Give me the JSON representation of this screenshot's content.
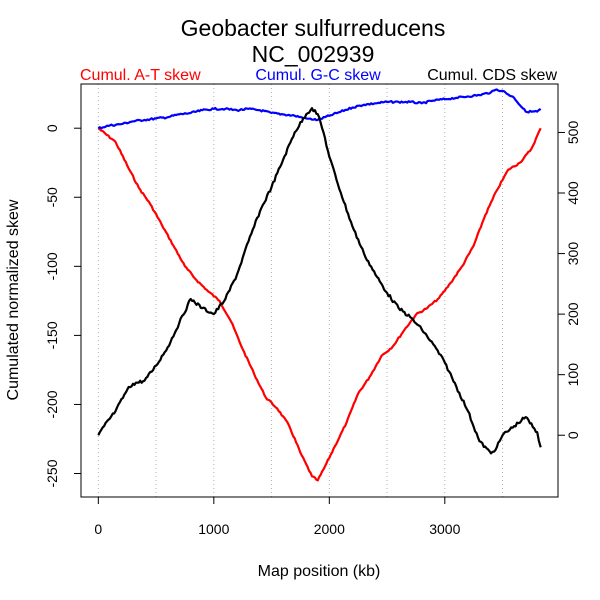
{
  "chart_data": {
    "type": "line",
    "title": "Geobacter sulfurreducens",
    "subtitle": "NC_002939",
    "xlabel": "Map position (kb)",
    "ylabel": "Cumulated normalized skew",
    "xlim": [
      -150,
      3980
    ],
    "ylim": [
      -267,
      32
    ],
    "y2lim": [
      -102,
      580
    ],
    "x_ticks": [
      0,
      1000,
      2000,
      3000
    ],
    "y_ticks": [
      0,
      -50,
      -100,
      -150,
      -200,
      -250
    ],
    "y2_ticks": [
      0,
      100,
      200,
      300,
      400,
      500
    ],
    "vgrid": [
      0,
      500,
      1000,
      1500,
      2000,
      2500,
      3000,
      3500
    ],
    "legend": [
      "Cumul. A-T skew",
      "Cumul. G-C skew",
      "Cumul. CDS skew"
    ],
    "series": [
      {
        "name": "Cumul. A-T skew",
        "axis": "left",
        "color": "#ff0000",
        "x": [
          0,
          150,
          250,
          350,
          450,
          550,
          650,
          750,
          850,
          950,
          1050,
          1150,
          1250,
          1350,
          1450,
          1550,
          1650,
          1750,
          1850,
          1900,
          1950,
          2050,
          2150,
          2250,
          2350,
          2450,
          2550,
          2650,
          2750,
          2850,
          2950,
          3050,
          3150,
          3250,
          3350,
          3450,
          3550,
          3650,
          3750,
          3830
        ],
        "values": [
          0,
          -10,
          -27,
          -43,
          -55,
          -70,
          -85,
          -100,
          -110,
          -118,
          -125,
          -140,
          -160,
          -178,
          -195,
          -203,
          -215,
          -235,
          -252,
          -255,
          -247,
          -230,
          -213,
          -192,
          -180,
          -165,
          -158,
          -146,
          -135,
          -130,
          -123,
          -112,
          -100,
          -85,
          -63,
          -45,
          -30,
          -25,
          -15,
          0
        ]
      },
      {
        "name": "Cumul. G-C skew",
        "axis": "left",
        "color": "#0000ff",
        "x": [
          0,
          100,
          200,
          300,
          400,
          500,
          600,
          700,
          800,
          900,
          1000,
          1100,
          1200,
          1300,
          1400,
          1500,
          1600,
          1700,
          1800,
          1900,
          2000,
          2100,
          2200,
          2300,
          2400,
          2500,
          2600,
          2700,
          2800,
          2900,
          3000,
          3100,
          3200,
          3300,
          3400,
          3450,
          3500,
          3600,
          3700,
          3800,
          3830
        ],
        "values": [
          0,
          2,
          3,
          5,
          6,
          7,
          8,
          10,
          11,
          13,
          14,
          14,
          13,
          14,
          13,
          11,
          10,
          9,
          7,
          6,
          9,
          12,
          15,
          17,
          18,
          19,
          19,
          19,
          18,
          20,
          21,
          22,
          23,
          24,
          26,
          28,
          27,
          22,
          12,
          12,
          14
        ]
      },
      {
        "name": "Cumul. CDS skew",
        "axis": "right",
        "color": "#000000",
        "x": [
          0,
          50,
          150,
          250,
          300,
          400,
          500,
          600,
          700,
          800,
          900,
          1000,
          1100,
          1200,
          1300,
          1400,
          1500,
          1600,
          1700,
          1800,
          1850,
          1900,
          1950,
          2000,
          2100,
          2200,
          2300,
          2400,
          2500,
          2600,
          2700,
          2800,
          2900,
          3000,
          3100,
          3200,
          3300,
          3400,
          3450,
          3500,
          3600,
          3700,
          3800,
          3830
        ],
        "values": [
          0,
          15,
          40,
          75,
          85,
          90,
          115,
          145,
          185,
          225,
          210,
          200,
          225,
          265,
          320,
          370,
          410,
          455,
          500,
          530,
          540,
          530,
          500,
          460,
          400,
          345,
          300,
          265,
          235,
          210,
          195,
          175,
          150,
          120,
          80,
          40,
          -10,
          -30,
          -20,
          0,
          15,
          30,
          5,
          -20
        ]
      }
    ]
  }
}
